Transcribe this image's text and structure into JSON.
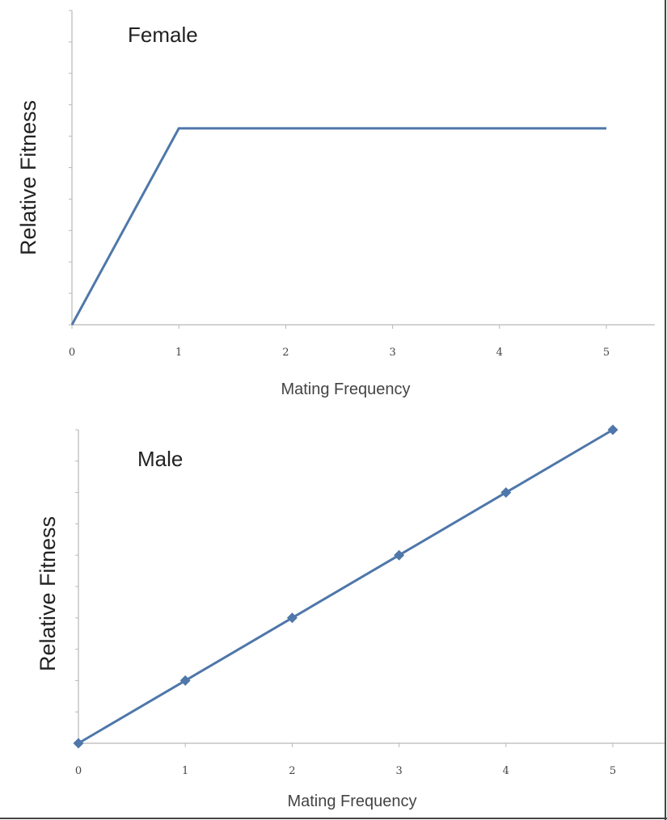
{
  "colors": {
    "series": "#4f77aa",
    "axis": "#b8b8b8"
  },
  "chart_data": [
    {
      "type": "line",
      "title": "Female",
      "xlabel": "Mating Frequency",
      "ylabel": "Relative Fitness",
      "x": [
        0,
        1,
        5
      ],
      "values": [
        0,
        1,
        1
      ],
      "xticks": [
        "0",
        "1",
        "2",
        "3",
        "4",
        "5"
      ],
      "xlim": [
        0,
        5
      ],
      "ylim": [
        0,
        1.6
      ],
      "markers": false,
      "grid": false,
      "legend": "none"
    },
    {
      "type": "line",
      "title": "Male",
      "xlabel": "Mating Frequency",
      "ylabel": "Relative Fitness",
      "x": [
        0,
        1,
        2,
        3,
        4,
        5
      ],
      "values": [
        0,
        1,
        2,
        3,
        4,
        5
      ],
      "xticks": [
        "0",
        "1",
        "2",
        "3",
        "4",
        "5"
      ],
      "xlim": [
        0,
        5
      ],
      "ylim": [
        0,
        5
      ],
      "markers": true,
      "grid": false,
      "legend": "none"
    }
  ]
}
